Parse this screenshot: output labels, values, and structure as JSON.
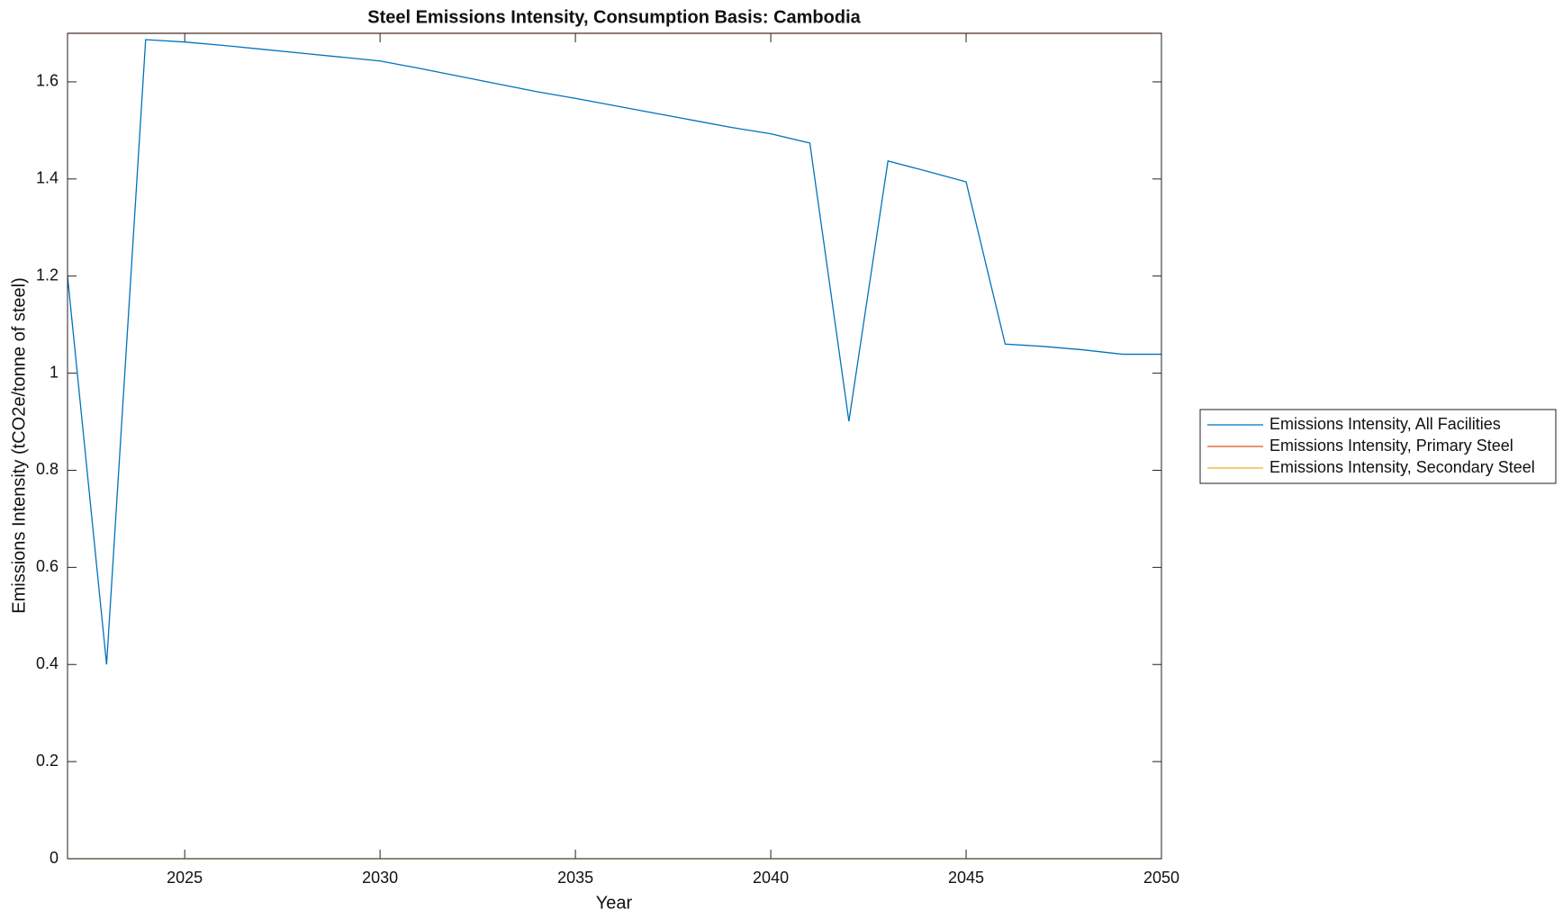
{
  "chart_data": {
    "type": "line",
    "title": "Steel Emissions Intensity, Consumption Basis: Cambodia",
    "xlabel": "Year",
    "ylabel": "Emissions Intensity (tCO2e/tonne of steel)",
    "x": [
      2022,
      2023,
      2024,
      2025,
      2026,
      2027,
      2028,
      2029,
      2030,
      2031,
      2032,
      2033,
      2034,
      2035,
      2036,
      2037,
      2038,
      2039,
      2040,
      2041,
      2042,
      2043,
      2044,
      2045,
      2046,
      2047,
      2048,
      2049,
      2050
    ],
    "series": [
      {
        "name": "Emissions Intensity, All Facilities",
        "color": "#0072bd",
        "values": [
          1.2,
          0.4,
          1.687,
          1.682,
          1.675,
          1.667,
          1.659,
          1.651,
          1.643,
          1.628,
          1.612,
          1.596,
          1.58,
          1.566,
          1.551,
          1.536,
          1.521,
          1.506,
          1.493,
          1.474,
          0.901,
          1.437,
          1.416,
          1.394,
          1.06,
          1.055,
          1.048,
          1.039,
          1.039
        ]
      },
      {
        "name": "Emissions Intensity, Primary Steel",
        "color": "#d95319",
        "values": [
          1.7,
          1.7,
          1.7,
          1.7,
          1.7,
          1.7,
          1.7,
          1.7,
          1.7,
          1.7,
          1.7,
          1.7,
          1.7,
          1.7,
          1.7,
          1.7,
          1.7,
          1.7,
          1.7,
          1.7,
          1.7,
          1.7,
          1.7,
          1.7,
          1.7,
          1.7,
          1.7,
          1.7,
          1.7
        ]
      },
      {
        "name": "Emissions Intensity, Secondary Steel",
        "color": "#edb120",
        "values": [
          0,
          0,
          0,
          0,
          0,
          0,
          0,
          0,
          0,
          0,
          0,
          0,
          0,
          0,
          0,
          0,
          0,
          0,
          0,
          0,
          0,
          0,
          0,
          0,
          0,
          0,
          0,
          0,
          0
        ]
      }
    ],
    "xlim": [
      2022,
      2050
    ],
    "xticks": [
      2025,
      2030,
      2035,
      2040,
      2045,
      2050
    ],
    "ylim": [
      0,
      1.7
    ],
    "yticks": [
      0,
      0.2,
      0.4,
      0.6,
      0.8,
      1,
      1.2,
      1.4,
      1.6
    ],
    "grid": false,
    "legend": "outside-right"
  }
}
